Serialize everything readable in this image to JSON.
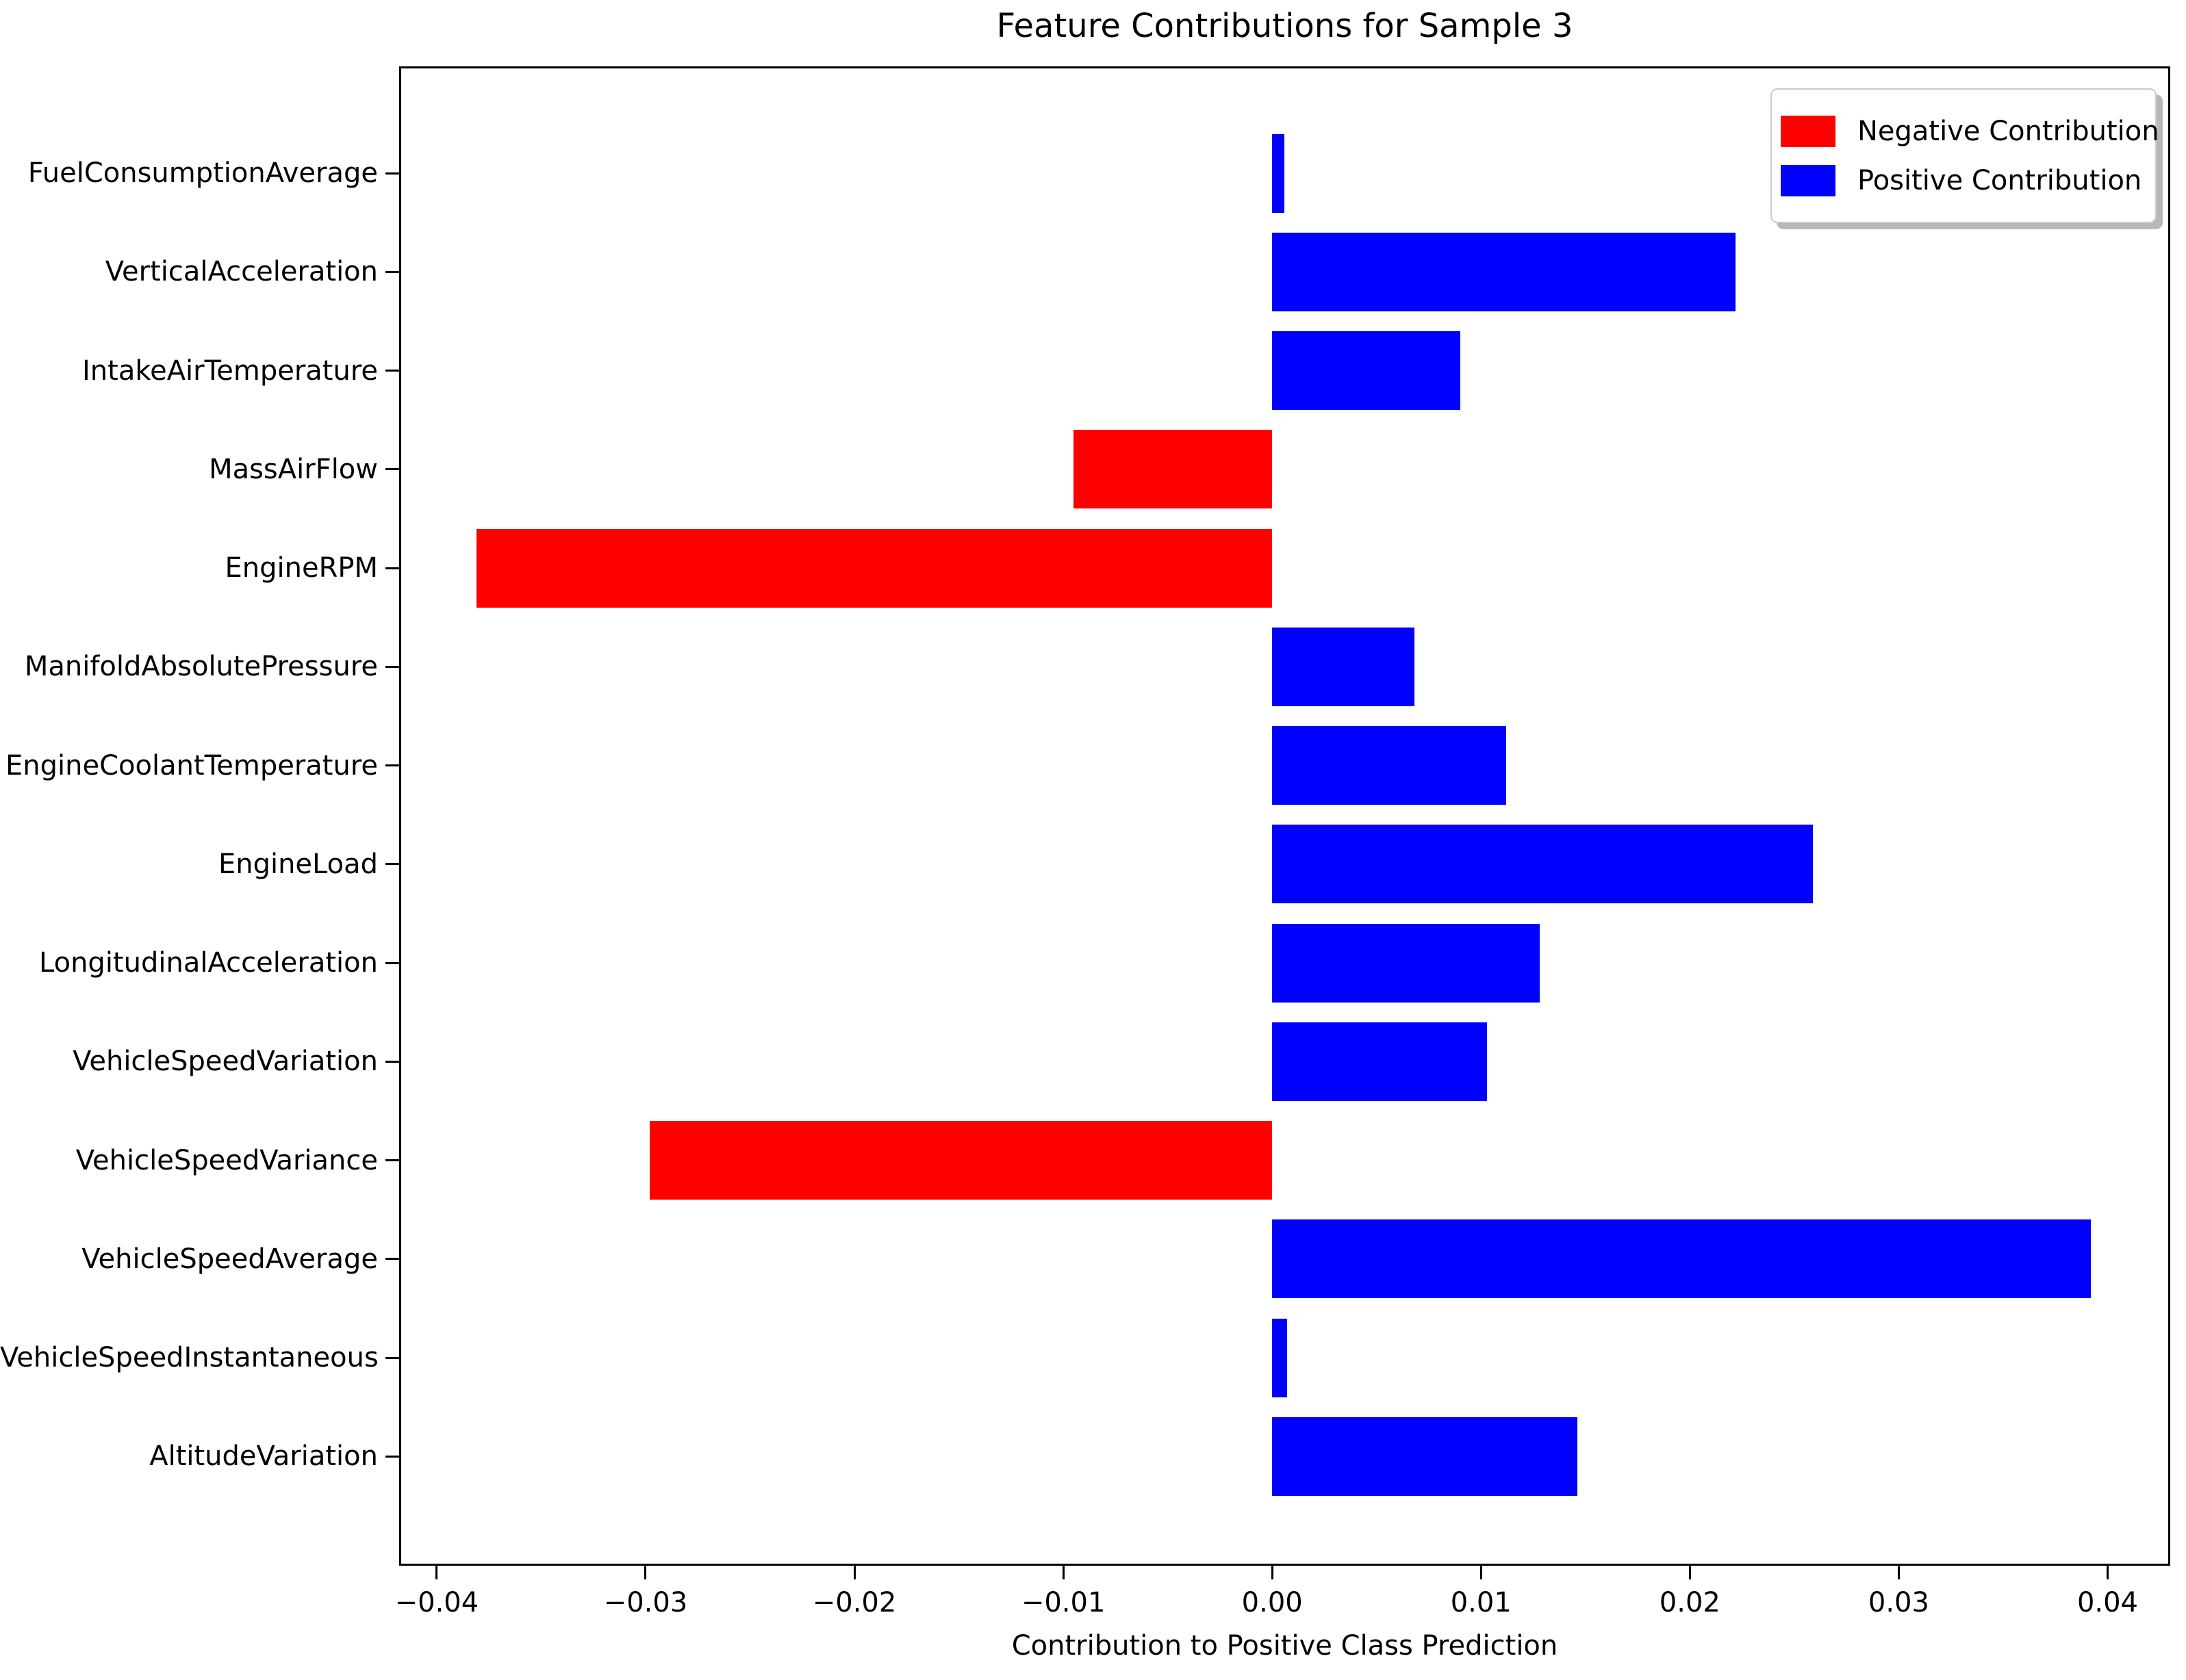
{
  "figure": {
    "title": "Feature Contributions for Sample 3",
    "xlabel": "Contribution to Positive Class Prediction"
  },
  "legend": {
    "items": [
      {
        "name": "negative",
        "label": "Negative Contribution",
        "color": "#ff0000"
      },
      {
        "name": "positive",
        "label": "Positive Contribution",
        "color": "#0000ff"
      }
    ]
  },
  "chart_data": {
    "type": "bar",
    "orientation": "horizontal",
    "title": "Feature Contributions for Sample 3",
    "xlabel": "Contribution to Positive Class Prediction",
    "ylabel": "",
    "grid": false,
    "legend_position": "upper right",
    "categories": [
      "FuelConsumptionAverage",
      "VerticalAcceleration",
      "IntakeAirTemperature",
      "MassAirFlow",
      "EngineRPM",
      "ManifoldAbsolutePressure",
      "EngineCoolantTemperature",
      "EngineLoad",
      "LongitudinalAcceleration",
      "VehicleSpeedVariation",
      "VehicleSpeedVariance",
      "VehicleSpeedAverage",
      "VehicleSpeedInstantaneous",
      "AltitudeVariation"
    ],
    "values": [
      0.0006,
      0.0222,
      0.009,
      -0.0095,
      -0.0381,
      0.0068,
      0.0112,
      0.0259,
      0.0128,
      0.0103,
      -0.0298,
      0.0392,
      0.0007,
      0.0146
    ],
    "positive_color": "#0000ff",
    "negative_color": "#ff0000",
    "xlim": [
      -0.0418,
      0.043
    ],
    "xticks": [
      -0.04,
      -0.03,
      -0.02,
      -0.01,
      0.0,
      0.01,
      0.02,
      0.03,
      0.04
    ],
    "xtick_labels": [
      "−0.04",
      "−0.03",
      "−0.02",
      "−0.01",
      "0.00",
      "0.01",
      "0.02",
      "0.03",
      "0.04"
    ]
  }
}
